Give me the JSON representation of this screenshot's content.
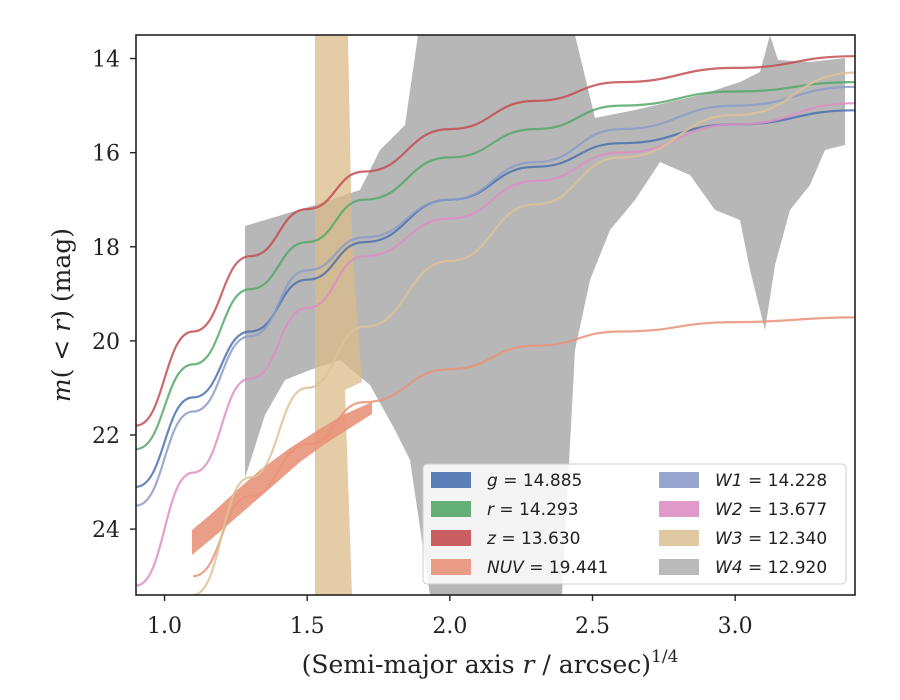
{
  "chart_data": {
    "type": "line",
    "xlabel_main": "(Semi-major axis ",
    "xlabel_var": "r",
    "xlabel_unit": " / arcsec)",
    "xlabel_exp": "1/4",
    "ylabel_pre": "m",
    "ylabel_paren_open": "(",
    "ylabel_lt": " < ",
    "ylabel_var": "r",
    "ylabel_paren_close": ")",
    "ylabel_unit": " (mag)",
    "xlim": [
      0.9,
      3.42
    ],
    "ylim": [
      25.4,
      13.5
    ],
    "y_inverted": true,
    "xticks": [
      "1.0",
      "1.5",
      "2.0",
      "2.5",
      "3.0"
    ],
    "yticks": [
      "14",
      "16",
      "18",
      "20",
      "22",
      "24"
    ],
    "legend_position": "lower-right",
    "series": [
      {
        "name": "g",
        "value": "14.885",
        "color": "#4c72b0",
        "x": [
          0.9,
          1.1,
          1.3,
          1.5,
          1.7,
          2.0,
          2.3,
          2.6,
          3.0,
          3.42
        ],
        "y": [
          23.1,
          21.2,
          19.8,
          18.7,
          17.9,
          17.0,
          16.3,
          15.8,
          15.4,
          15.1
        ]
      },
      {
        "name": "r",
        "value": "14.293",
        "color": "#55a868",
        "x": [
          0.9,
          1.1,
          1.3,
          1.5,
          1.7,
          2.0,
          2.3,
          2.6,
          3.0,
          3.42
        ],
        "y": [
          22.3,
          20.5,
          18.9,
          17.9,
          17.0,
          16.1,
          15.5,
          15.0,
          14.7,
          14.5
        ]
      },
      {
        "name": "z",
        "value": "13.630",
        "color": "#c44e52",
        "x": [
          0.9,
          1.1,
          1.3,
          1.5,
          1.7,
          2.0,
          2.3,
          2.6,
          3.0,
          3.42
        ],
        "y": [
          21.8,
          19.8,
          18.2,
          17.2,
          16.4,
          15.5,
          14.9,
          14.5,
          14.2,
          13.95
        ]
      },
      {
        "name": "NUV",
        "value": "19.441",
        "color": "#e8937a",
        "x": [
          1.1,
          1.3,
          1.5,
          1.7,
          2.0,
          2.3,
          2.6,
          3.0,
          3.42
        ],
        "y": [
          25.0,
          23.3,
          22.2,
          21.3,
          20.6,
          20.1,
          19.8,
          19.6,
          19.5
        ]
      },
      {
        "name": "W1",
        "value": "14.228",
        "color": "#8c9cc8",
        "x": [
          0.9,
          1.1,
          1.3,
          1.5,
          1.7,
          2.0,
          2.3,
          2.6,
          3.0,
          3.42
        ],
        "y": [
          23.5,
          21.5,
          19.9,
          18.5,
          17.8,
          17.0,
          16.2,
          15.5,
          15.0,
          14.6
        ]
      },
      {
        "name": "W2",
        "value": "13.677",
        "color": "#dd8fc3",
        "x": [
          0.9,
          1.1,
          1.3,
          1.5,
          1.7,
          2.0,
          2.3,
          2.6,
          3.0,
          3.42
        ],
        "y": [
          25.2,
          22.8,
          20.8,
          19.3,
          18.2,
          17.4,
          16.6,
          16.0,
          15.4,
          14.95
        ]
      },
      {
        "name": "W3",
        "value": "12.340",
        "color": "#ddc298",
        "x": [
          1.1,
          1.3,
          1.5,
          1.7,
          2.0,
          2.3,
          2.6,
          3.0,
          3.42
        ],
        "y": [
          25.4,
          22.9,
          21.0,
          19.7,
          18.3,
          17.1,
          16.1,
          15.2,
          14.3
        ]
      },
      {
        "name": "W4",
        "value": "12.920",
        "color": "#b3b3b3",
        "x": [
          1.3,
          1.5,
          1.7,
          2.0,
          2.3,
          2.6,
          3.0,
          3.42
        ],
        "y": [
          20.3,
          18.3,
          17.8,
          17.3,
          16.6,
          16.1,
          15.6,
          15.0
        ]
      }
    ]
  }
}
